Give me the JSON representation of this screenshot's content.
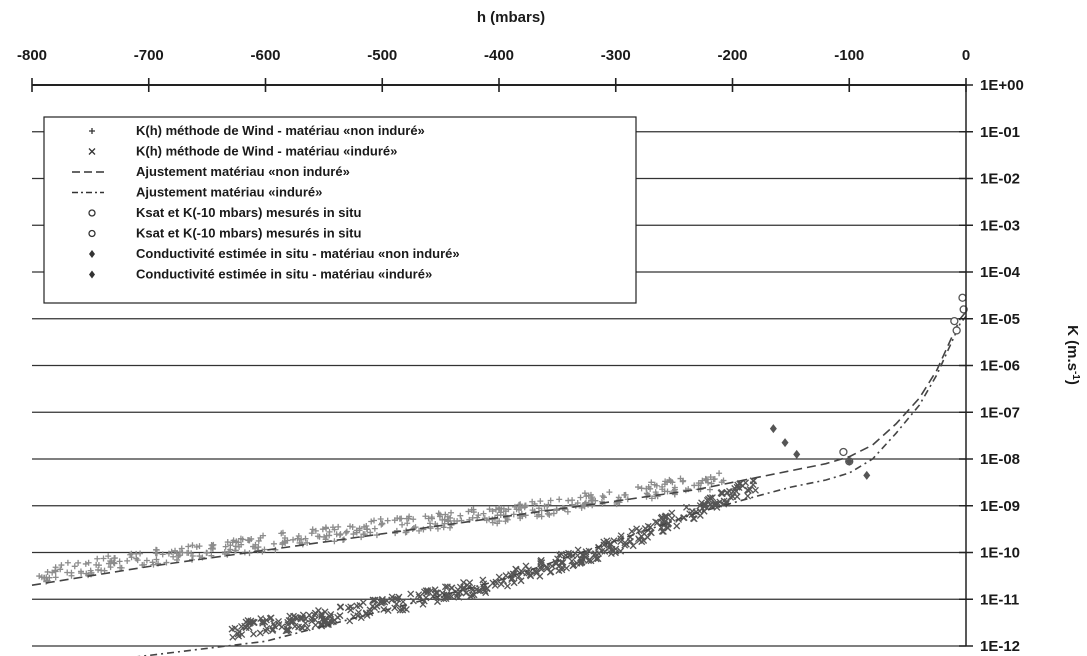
{
  "chart_data": {
    "type": "scatter",
    "x_title": "h (mbars)",
    "y_title_base": "K (m.s",
    "y_title_sup": "-1",
    "y_title_end": ")",
    "xlim": [
      -800,
      0
    ],
    "ylim_log10": [
      -12,
      0
    ],
    "y_scale": "log",
    "x_ticks": [
      -800,
      -700,
      -600,
      -500,
      -400,
      -300,
      -200,
      -100,
      0
    ],
    "x_tick_labels": [
      "-800",
      "-700",
      "-600",
      "-500",
      "-400",
      "-300",
      "-200",
      "-100",
      "0"
    ],
    "y_ticks_log10": [
      0,
      -1,
      -2,
      -3,
      -4,
      -5,
      -6,
      -7,
      -8,
      -9,
      -10,
      -11,
      -12
    ],
    "y_tick_labels": [
      "1E+00",
      "1E-01",
      "1E-02",
      "1E-03",
      "1E-04",
      "1E-05",
      "1E-06",
      "1E-07",
      "1E-08",
      "1E-09",
      "1E-10",
      "1E-11",
      "1E-12"
    ],
    "grid": "horizontal",
    "legend_position": "top-left",
    "series": [
      {
        "name": "K(h) méthode de Wind - matériau «non induré»",
        "marker": "plus",
        "color": "#8c8c8c",
        "band": [
          [
            -795,
            -10.5
          ],
          [
            -700,
            -10.1
          ],
          [
            -600,
            -9.8
          ],
          [
            -500,
            -9.45
          ],
          [
            -400,
            -9.2
          ],
          [
            -300,
            -8.8
          ],
          [
            -240,
            -8.55
          ],
          [
            -205,
            -8.45
          ]
        ],
        "band_width_log": 0.35
      },
      {
        "name": "K(h) méthode de Wind - matériau «induré»",
        "marker": "x",
        "color": "#555555",
        "band": [
          [
            -630,
            -11.65
          ],
          [
            -550,
            -11.4
          ],
          [
            -480,
            -11.05
          ],
          [
            -420,
            -10.75
          ],
          [
            -360,
            -10.3
          ],
          [
            -300,
            -9.85
          ],
          [
            -250,
            -9.3
          ],
          [
            -210,
            -8.85
          ],
          [
            -180,
            -8.55
          ]
        ],
        "band_width_log": 0.35
      },
      {
        "name": "Ajustement matériau «non induré»",
        "style": "dashed",
        "color": "#444444",
        "x": [
          -800,
          -700,
          -600,
          -500,
          -400,
          -300,
          -230,
          -180,
          -150,
          -120,
          -100,
          -80,
          -60,
          -40,
          -25,
          -15,
          -5,
          0
        ],
        "y_log10": [
          -10.7,
          -10.3,
          -9.95,
          -9.6,
          -9.25,
          -8.9,
          -8.65,
          -8.4,
          -8.25,
          -8.1,
          -7.95,
          -7.7,
          -7.25,
          -6.7,
          -6.1,
          -5.55,
          -5.0,
          -4.85
        ]
      },
      {
        "name": "Ajustement matériau «induré»",
        "style": "dash-dot",
        "color": "#444444",
        "x": [
          -800,
          -700,
          -600,
          -500,
          -400,
          -300,
          -230,
          -180,
          -150,
          -120,
          -100,
          -80,
          -60,
          -40,
          -25,
          -15,
          -5,
          0
        ],
        "y_log10": [
          -12.5,
          -12.2,
          -11.9,
          -11.25,
          -10.6,
          -9.75,
          -9.15,
          -8.8,
          -8.6,
          -8.45,
          -8.3,
          -8.0,
          -7.45,
          -6.85,
          -6.2,
          -5.65,
          -5.1,
          -4.95
        ]
      },
      {
        "name": "Ksat et K(-10 mbars) mesurés in situ",
        "marker": "circle",
        "color": "#555555",
        "x": [
          -10,
          -3,
          -100,
          -105
        ],
        "y_log10": [
          -5.05,
          -4.55,
          -8.05,
          -7.85
        ]
      },
      {
        "name": "Ksat et K(-10 mbars) mesurés in situ",
        "marker": "circle",
        "color": "#555555",
        "x": [
          -8,
          -2
        ],
        "y_log10": [
          -5.25,
          -4.8
        ]
      },
      {
        "name": "Conductivité estimée in situ - matériau «non induré»",
        "marker": "diamond",
        "color": "#555555",
        "x": [
          -165,
          -155,
          -145
        ],
        "y_log10": [
          -7.35,
          -7.65,
          -7.9
        ]
      },
      {
        "name": "Conductivité estimée in situ - matériau «induré»",
        "marker": "diamond",
        "color": "#555555",
        "x": [
          -100,
          -85
        ],
        "y_log10": [
          -8.05,
          -8.35
        ]
      }
    ]
  }
}
